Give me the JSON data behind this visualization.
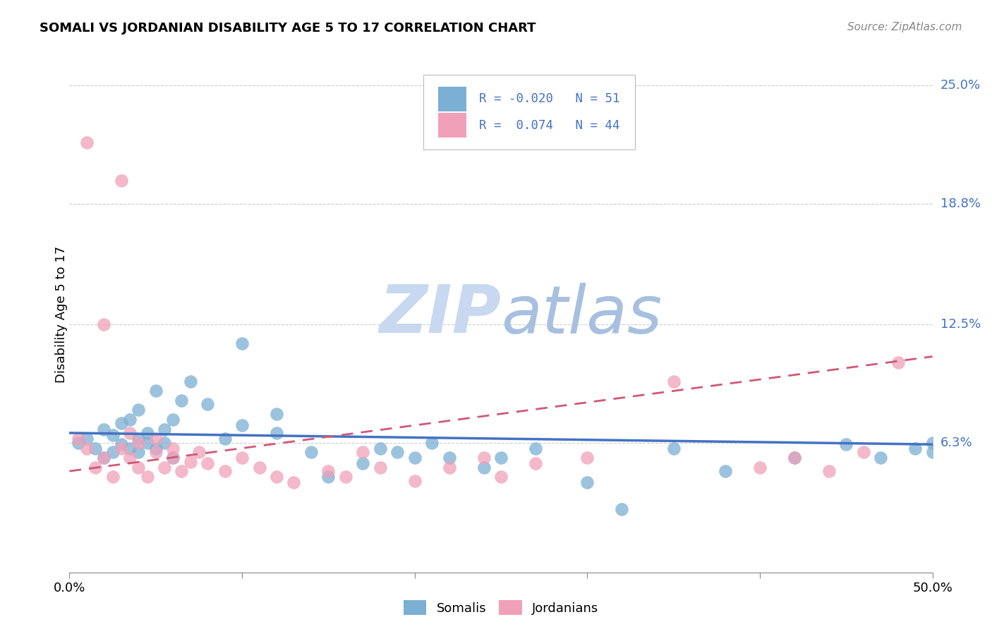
{
  "title": "SOMALI VS JORDANIAN DISABILITY AGE 5 TO 17 CORRELATION CHART",
  "source": "Source: ZipAtlas.com",
  "ylabel": "Disability Age 5 to 17",
  "xlim": [
    0.0,
    0.5
  ],
  "ylim": [
    -0.005,
    0.265
  ],
  "ytick_right_vals": [
    0.063,
    0.125,
    0.188,
    0.25
  ],
  "ytick_right_labels": [
    "6.3%",
    "12.5%",
    "18.8%",
    "25.0%"
  ],
  "somali_R": -0.02,
  "somali_N": 51,
  "jordanian_R": 0.074,
  "jordanian_N": 44,
  "somali_color": "#7bafd4",
  "jordanian_color": "#f0a0b8",
  "somali_line_color": "#4472c4",
  "jordanian_line_color": "#d05878",
  "watermark_color": "#ccd9ee",
  "background_color": "#ffffff",
  "grid_color": "#cccccc",
  "somali_x": [
    0.005,
    0.01,
    0.015,
    0.02,
    0.02,
    0.025,
    0.025,
    0.03,
    0.03,
    0.035,
    0.035,
    0.04,
    0.04,
    0.04,
    0.045,
    0.045,
    0.05,
    0.05,
    0.055,
    0.055,
    0.06,
    0.06,
    0.065,
    0.07,
    0.08,
    0.09,
    0.1,
    0.1,
    0.12,
    0.12,
    0.14,
    0.15,
    0.17,
    0.18,
    0.19,
    0.2,
    0.21,
    0.22,
    0.24,
    0.25,
    0.27,
    0.3,
    0.32,
    0.35,
    0.38,
    0.42,
    0.45,
    0.47,
    0.49,
    0.5,
    0.5
  ],
  "somali_y": [
    0.063,
    0.065,
    0.06,
    0.055,
    0.07,
    0.058,
    0.067,
    0.062,
    0.073,
    0.06,
    0.075,
    0.065,
    0.058,
    0.08,
    0.063,
    0.068,
    0.06,
    0.09,
    0.07,
    0.063,
    0.055,
    0.075,
    0.085,
    0.095,
    0.083,
    0.065,
    0.072,
    0.115,
    0.078,
    0.068,
    0.058,
    0.045,
    0.052,
    0.06,
    0.058,
    0.055,
    0.063,
    0.055,
    0.05,
    0.055,
    0.06,
    0.042,
    0.028,
    0.06,
    0.048,
    0.055,
    0.062,
    0.055,
    0.06,
    0.058,
    0.063
  ],
  "jordanian_x": [
    0.005,
    0.01,
    0.01,
    0.015,
    0.02,
    0.02,
    0.025,
    0.03,
    0.03,
    0.035,
    0.035,
    0.04,
    0.04,
    0.045,
    0.05,
    0.05,
    0.055,
    0.06,
    0.06,
    0.065,
    0.07,
    0.075,
    0.08,
    0.09,
    0.1,
    0.11,
    0.12,
    0.13,
    0.15,
    0.16,
    0.17,
    0.18,
    0.2,
    0.22,
    0.24,
    0.25,
    0.27,
    0.3,
    0.35,
    0.4,
    0.42,
    0.44,
    0.46,
    0.48
  ],
  "jordanian_y": [
    0.065,
    0.06,
    0.22,
    0.05,
    0.055,
    0.125,
    0.045,
    0.06,
    0.2,
    0.055,
    0.068,
    0.05,
    0.063,
    0.045,
    0.058,
    0.065,
    0.05,
    0.055,
    0.06,
    0.048,
    0.053,
    0.058,
    0.052,
    0.048,
    0.055,
    0.05,
    0.045,
    0.042,
    0.048,
    0.045,
    0.058,
    0.05,
    0.043,
    0.05,
    0.055,
    0.045,
    0.052,
    0.055,
    0.095,
    0.05,
    0.055,
    0.048,
    0.058,
    0.105
  ],
  "somali_line_x0": 0.0,
  "somali_line_x1": 0.5,
  "somali_line_y0": 0.068,
  "somali_line_y1": 0.062,
  "jordanian_line_x0": 0.0,
  "jordanian_line_x1": 0.5,
  "jordanian_line_y0": 0.048,
  "jordanian_line_y1": 0.108
}
